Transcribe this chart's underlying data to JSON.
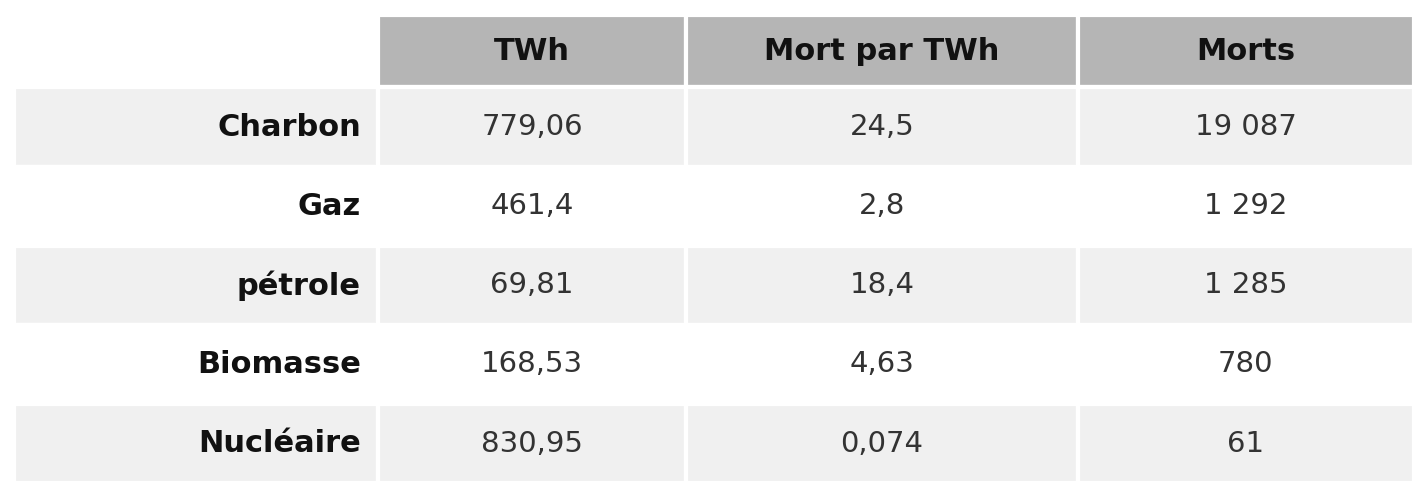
{
  "col_headers": [
    "TWh",
    "Mort par TWh",
    "Morts"
  ],
  "row_headers": [
    "Charbon",
    "Gaz",
    "pétrole",
    "Biomasse",
    "Nucléaire"
  ],
  "cell_data": [
    [
      "779,06",
      "24,5",
      "19 087"
    ],
    [
      "461,4",
      "2,8",
      "1 292"
    ],
    [
      "69,81",
      "18,4",
      "1 285"
    ],
    [
      "168,53",
      "4,63",
      "780"
    ],
    [
      "830,95",
      "0,074",
      "61"
    ]
  ],
  "header_bg": "#b5b5b5",
  "row_bg_odd": "#f0f0f0",
  "row_bg_even": "#ffffff",
  "header_text_color": "#111111",
  "cell_text_color": "#333333",
  "row_header_text_color": "#111111",
  "border_color": "#ffffff",
  "fig_bg": "#ffffff",
  "header_fontsize": 22,
  "cell_fontsize": 21,
  "row_header_fontsize": 22,
  "figwidth": 14.28,
  "figheight": 4.98,
  "dpi": 100
}
